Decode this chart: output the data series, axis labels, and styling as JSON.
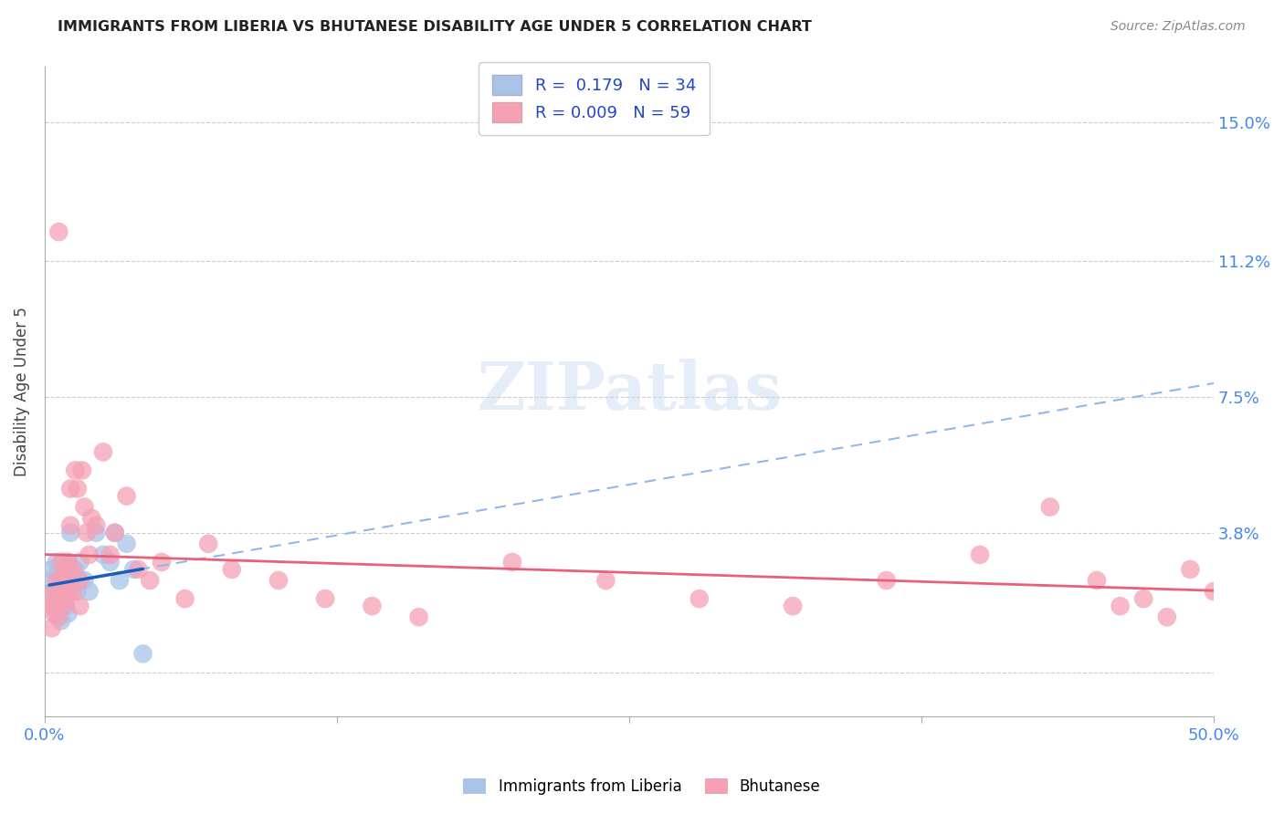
{
  "title": "IMMIGRANTS FROM LIBERIA VS BHUTANESE DISABILITY AGE UNDER 5 CORRELATION CHART",
  "source": "Source: ZipAtlas.com",
  "ylabel": "Disability Age Under 5",
  "xlim": [
    0.0,
    0.5
  ],
  "ylim": [
    -0.012,
    0.165
  ],
  "yticks": [
    0.0,
    0.038,
    0.075,
    0.112,
    0.15
  ],
  "ytick_labels": [
    "",
    "3.8%",
    "7.5%",
    "11.2%",
    "15.0%"
  ],
  "xticks": [
    0.0,
    0.125,
    0.25,
    0.375,
    0.5
  ],
  "xtick_labels": [
    "0.0%",
    "",
    "",
    "",
    "50.0%"
  ],
  "liberia_R": 0.179,
  "liberia_N": 34,
  "bhutan_R": 0.009,
  "bhutan_N": 59,
  "liberia_color": "#aac4e8",
  "bhutan_color": "#f5a0b5",
  "liberia_line_color": "#1a5dba",
  "bhutan_line_color": "#e8607a",
  "trend_line_color": "#90b8e8",
  "background_color": "#ffffff",
  "grid_color": "#cccccc",
  "liberia_x": [
    0.002,
    0.003,
    0.004,
    0.004,
    0.005,
    0.005,
    0.005,
    0.006,
    0.006,
    0.007,
    0.007,
    0.007,
    0.008,
    0.008,
    0.009,
    0.009,
    0.01,
    0.01,
    0.01,
    0.011,
    0.012,
    0.013,
    0.014,
    0.015,
    0.017,
    0.019,
    0.022,
    0.025,
    0.028,
    0.03,
    0.032,
    0.035,
    0.038,
    0.042
  ],
  "liberia_y": [
    0.025,
    0.028,
    0.022,
    0.018,
    0.03,
    0.022,
    0.016,
    0.028,
    0.02,
    0.025,
    0.02,
    0.014,
    0.03,
    0.022,
    0.025,
    0.018,
    0.03,
    0.022,
    0.016,
    0.038,
    0.025,
    0.028,
    0.022,
    0.03,
    0.025,
    0.022,
    0.038,
    0.032,
    0.03,
    0.038,
    0.025,
    0.035,
    0.028,
    0.005
  ],
  "bhutan_x": [
    0.002,
    0.003,
    0.003,
    0.004,
    0.004,
    0.005,
    0.005,
    0.006,
    0.006,
    0.006,
    0.007,
    0.007,
    0.008,
    0.008,
    0.009,
    0.009,
    0.01,
    0.01,
    0.011,
    0.011,
    0.012,
    0.012,
    0.013,
    0.014,
    0.015,
    0.015,
    0.016,
    0.017,
    0.018,
    0.019,
    0.02,
    0.022,
    0.025,
    0.028,
    0.03,
    0.035,
    0.04,
    0.045,
    0.05,
    0.06,
    0.07,
    0.08,
    0.1,
    0.12,
    0.14,
    0.16,
    0.2,
    0.24,
    0.28,
    0.32,
    0.36,
    0.4,
    0.43,
    0.45,
    0.46,
    0.47,
    0.48,
    0.49,
    0.5
  ],
  "bhutan_y": [
    0.02,
    0.018,
    0.012,
    0.022,
    0.016,
    0.025,
    0.018,
    0.12,
    0.02,
    0.015,
    0.03,
    0.022,
    0.025,
    0.018,
    0.028,
    0.02,
    0.03,
    0.022,
    0.05,
    0.04,
    0.028,
    0.022,
    0.055,
    0.05,
    0.025,
    0.018,
    0.055,
    0.045,
    0.038,
    0.032,
    0.042,
    0.04,
    0.06,
    0.032,
    0.038,
    0.048,
    0.028,
    0.025,
    0.03,
    0.02,
    0.035,
    0.028,
    0.025,
    0.02,
    0.018,
    0.015,
    0.03,
    0.025,
    0.02,
    0.018,
    0.025,
    0.032,
    0.045,
    0.025,
    0.018,
    0.02,
    0.015,
    0.028,
    0.022
  ],
  "liberia_line_x": [
    0.002,
    0.042
  ],
  "liberia_line_y_start": 0.022,
  "liberia_line_y_end": 0.038,
  "bhutan_line_y": 0.028,
  "trend_line_y_start": 0.018,
  "trend_line_y_end": 0.075
}
